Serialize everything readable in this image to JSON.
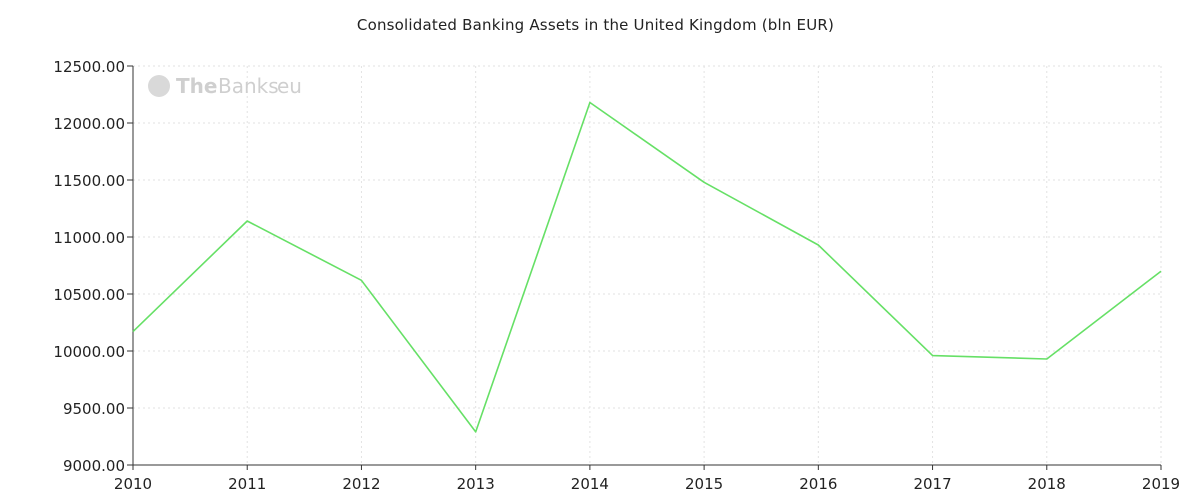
{
  "chart_data": {
    "type": "line",
    "title": "Consolidated Banking Assets in the United Kingdom (bln EUR)",
    "xlabel": "",
    "ylabel": "",
    "x": [
      "2010",
      "2011",
      "2012",
      "2013",
      "2014",
      "2015",
      "2016",
      "2017",
      "2018",
      "2019"
    ],
    "series": [
      {
        "values": [
          10170,
          11140,
          10620,
          9290,
          12180,
          11480,
          10930,
          9960,
          9930,
          10700
        ]
      }
    ],
    "ylim": [
      9000,
      12500
    ],
    "yticks": [
      "9000.00",
      "9500.00",
      "10000.00",
      "10500.00",
      "11000.00",
      "11500.00",
      "12000.00",
      "12500.00"
    ],
    "grid": true,
    "line_color": "#66e066",
    "grid_color": "#e2e2e2",
    "axis_color": "#333333"
  },
  "watermark": {
    "brand_bold": "The",
    "brand_light": "Banks",
    "suffix": "eu"
  }
}
